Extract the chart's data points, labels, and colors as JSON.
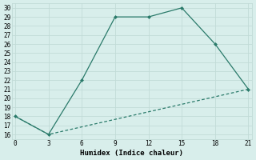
{
  "line1_x": [
    0,
    3,
    6,
    9,
    12,
    15,
    18,
    21
  ],
  "line1_y": [
    18,
    16,
    22,
    29,
    29,
    30,
    26,
    21
  ],
  "line2_x": [
    0,
    3,
    21
  ],
  "line2_y": [
    18,
    16,
    21
  ],
  "color": "#2a7a6a",
  "bg_color": "#d8eeeb",
  "grid_major_color": "#c2dbd7",
  "grid_minor_color": "#e0f0ed",
  "xlabel": "Humidex (Indice chaleur)",
  "xlim": [
    -0.3,
    21.3
  ],
  "ylim": [
    15.5,
    30.5
  ],
  "xticks": [
    0,
    3,
    6,
    9,
    12,
    15,
    18,
    21
  ],
  "yticks": [
    16,
    17,
    18,
    19,
    20,
    21,
    22,
    23,
    24,
    25,
    26,
    27,
    28,
    29,
    30
  ]
}
